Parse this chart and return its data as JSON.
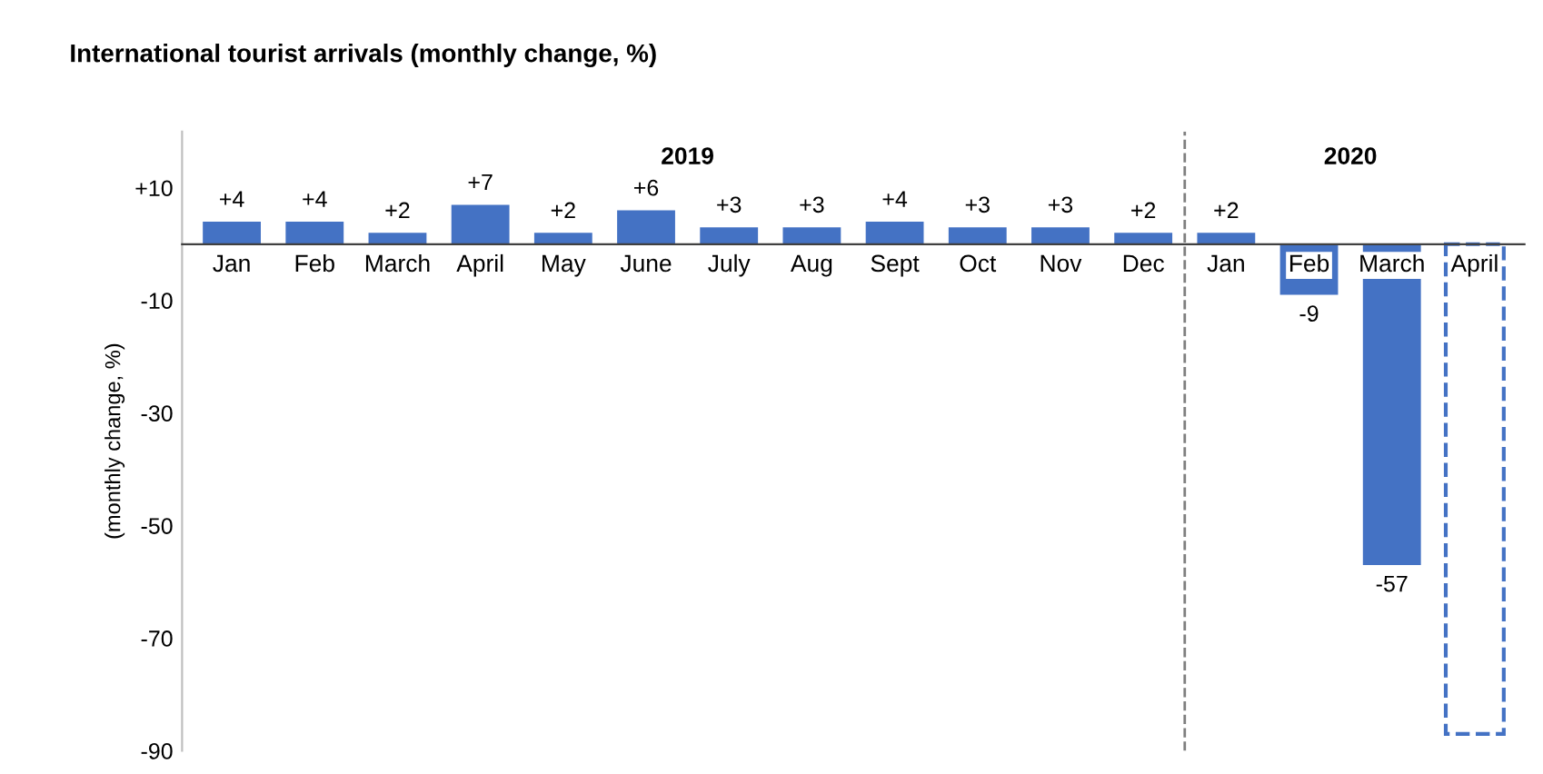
{
  "chart_data": {
    "type": "bar",
    "title": "International tourist arrivals (monthly change, %)",
    "ylabel": "(monthly change, %)",
    "categories": [
      "Jan",
      "Feb",
      "March",
      "April",
      "May",
      "June",
      "July",
      "Aug",
      "Sept",
      "Oct",
      "Nov",
      "Dec",
      "Jan",
      "Feb",
      "March",
      "April"
    ],
    "series": [
      {
        "color": "#4472c4",
        "values": [
          4,
          4,
          2,
          7,
          2,
          6,
          3,
          3,
          4,
          3,
          3,
          2,
          2,
          -9,
          -57,
          null
        ],
        "value_labels": [
          "+4",
          "+4",
          "+2",
          "+7",
          "+2",
          "+6",
          "+3",
          "+3",
          "+4",
          "+3",
          "+3",
          "+2",
          "+2",
          "-9",
          "-57",
          null
        ]
      },
      {
        "color": "#4472c4",
        "line_style": "dashed",
        "values": [
          null,
          null,
          null,
          null,
          null,
          null,
          null,
          null,
          null,
          null,
          null,
          null,
          null,
          null,
          null,
          -87
        ]
      }
    ],
    "ylim": [
      -90,
      20
    ],
    "yticks": [
      {
        "value": 10,
        "label": "+10"
      },
      -10,
      -30,
      -50,
      -70,
      -90
    ],
    "annotations": [
      "2019",
      "2020"
    ],
    "grid": false,
    "legend": false
  }
}
